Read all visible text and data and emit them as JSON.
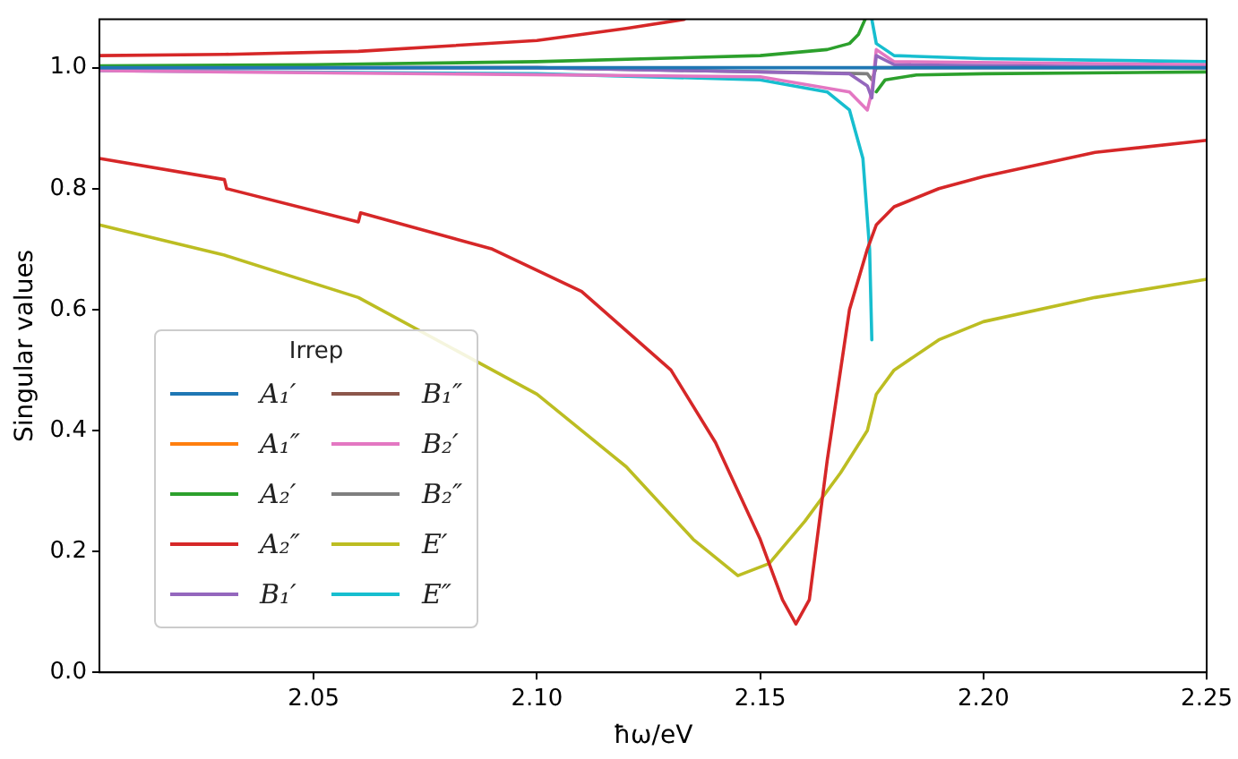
{
  "chart_data": {
    "type": "line",
    "xlabel": "ħω/eV",
    "ylabel": "Singular values",
    "legend_title": "Irrep",
    "legend": "lower left",
    "xlim": [
      2.002,
      2.25
    ],
    "ylim": [
      0,
      1.08
    ],
    "xticks": [
      2.05,
      {
        "value": 2.1,
        "label": "2.10"
      },
      2.15,
      {
        "value": 2.2,
        "label": "2.20"
      },
      2.25
    ],
    "yticks": [
      {
        "value": 0,
        "label": "0.0"
      },
      {
        "value": 0.2,
        "label": "0.2"
      },
      {
        "value": 0.4,
        "label": "0.4"
      },
      {
        "value": 0.6,
        "label": "0.6"
      },
      {
        "value": 0.8,
        "label": "0.8"
      },
      {
        "value": 1,
        "label": "1.0"
      }
    ],
    "line_style": "solid",
    "marker": "none",
    "series": [
      {
        "name": "A₁′",
        "color": "#1f77b4",
        "x": [
          2.002,
          2.1,
          2.17,
          2.18,
          2.25
        ],
        "values": [
          1.0,
          1.0,
          1.0,
          1.0,
          1.0
        ]
      },
      {
        "name": "A₁″",
        "color": "#ff7f0e"
      },
      {
        "name": "A₂′",
        "color": "#2ca02c",
        "x": [
          2.002,
          2.05,
          2.1,
          2.15,
          2.165,
          2.17,
          2.172,
          2.1735
        ],
        "values": [
          1.003,
          1.005,
          1.01,
          1.02,
          1.03,
          1.04,
          1.055,
          1.08
        ]
      },
      {
        "color": "#2ca02c",
        "x": [
          2.176,
          2.178,
          2.185,
          2.2,
          2.25
        ],
        "values": [
          0.96,
          0.98,
          0.988,
          0.99,
          0.993
        ]
      },
      {
        "name": "A₂″",
        "color": "#d62728",
        "x": [
          2.002,
          2.03,
          2.0305,
          2.06,
          2.0605,
          2.09,
          2.11,
          2.13,
          2.14,
          2.15,
          2.155,
          2.158,
          2.161,
          2.165,
          2.17,
          2.174,
          2.176,
          2.18,
          2.19,
          2.2,
          2.225,
          2.25
        ],
        "values": [
          0.85,
          0.815,
          0.8,
          0.745,
          0.76,
          0.7,
          0.63,
          0.5,
          0.38,
          0.22,
          0.12,
          0.08,
          0.12,
          0.35,
          0.6,
          0.7,
          0.74,
          0.77,
          0.8,
          0.82,
          0.86,
          0.88
        ]
      },
      {
        "color": "#d62728",
        "x": [
          2.002,
          2.03,
          2.06,
          2.1,
          2.12,
          2.133
        ],
        "values": [
          1.02,
          1.022,
          1.027,
          1.045,
          1.065,
          1.08
        ]
      },
      {
        "name": "B₁′",
        "color": "#9467bd",
        "x": [
          2.002,
          2.1,
          2.17,
          2.174,
          2.175,
          2.176,
          2.18,
          2.25
        ],
        "values": [
          1.0,
          1.0,
          0.99,
          0.97,
          0.95,
          1.02,
          1.005,
          1.0
        ]
      },
      {
        "name": "B₁″",
        "color": "#8c564b"
      },
      {
        "name": "B₂′",
        "color": "#e377c2",
        "x": [
          2.002,
          2.15,
          2.17,
          2.174,
          2.175,
          2.176,
          2.18,
          2.25
        ],
        "values": [
          0.995,
          0.985,
          0.96,
          0.93,
          0.96,
          1.03,
          1.01,
          1.005
        ]
      },
      {
        "name": "B₂″",
        "color": "#7f7f7f",
        "x": [
          2.002,
          2.1,
          2.174,
          2.175,
          2.176,
          2.25
        ],
        "values": [
          1.0,
          1.0,
          0.99,
          0.98,
          1.0,
          1.0
        ]
      },
      {
        "name": "E′",
        "color": "#bcbd22",
        "x": [
          2.002,
          2.03,
          2.06,
          2.09,
          2.1,
          2.12,
          2.135,
          2.145,
          2.152,
          2.16,
          2.168,
          2.174,
          2.176,
          2.18,
          2.19,
          2.2,
          2.225,
          2.25
        ],
        "values": [
          0.74,
          0.69,
          0.62,
          0.5,
          0.46,
          0.34,
          0.22,
          0.16,
          0.18,
          0.25,
          0.33,
          0.4,
          0.46,
          0.5,
          0.55,
          0.58,
          0.62,
          0.65
        ]
      },
      {
        "name": "E″",
        "color": "#17becf",
        "x": [
          2.002,
          2.1,
          2.15,
          2.165,
          2.17,
          2.173,
          2.1745,
          2.175
        ],
        "values": [
          0.995,
          0.99,
          0.98,
          0.96,
          0.93,
          0.85,
          0.7,
          0.55
        ]
      },
      {
        "color": "#17becf",
        "x": [
          2.175,
          2.176,
          2.18,
          2.2,
          2.25
        ],
        "values": [
          1.08,
          1.04,
          1.02,
          1.015,
          1.01
        ]
      }
    ]
  }
}
